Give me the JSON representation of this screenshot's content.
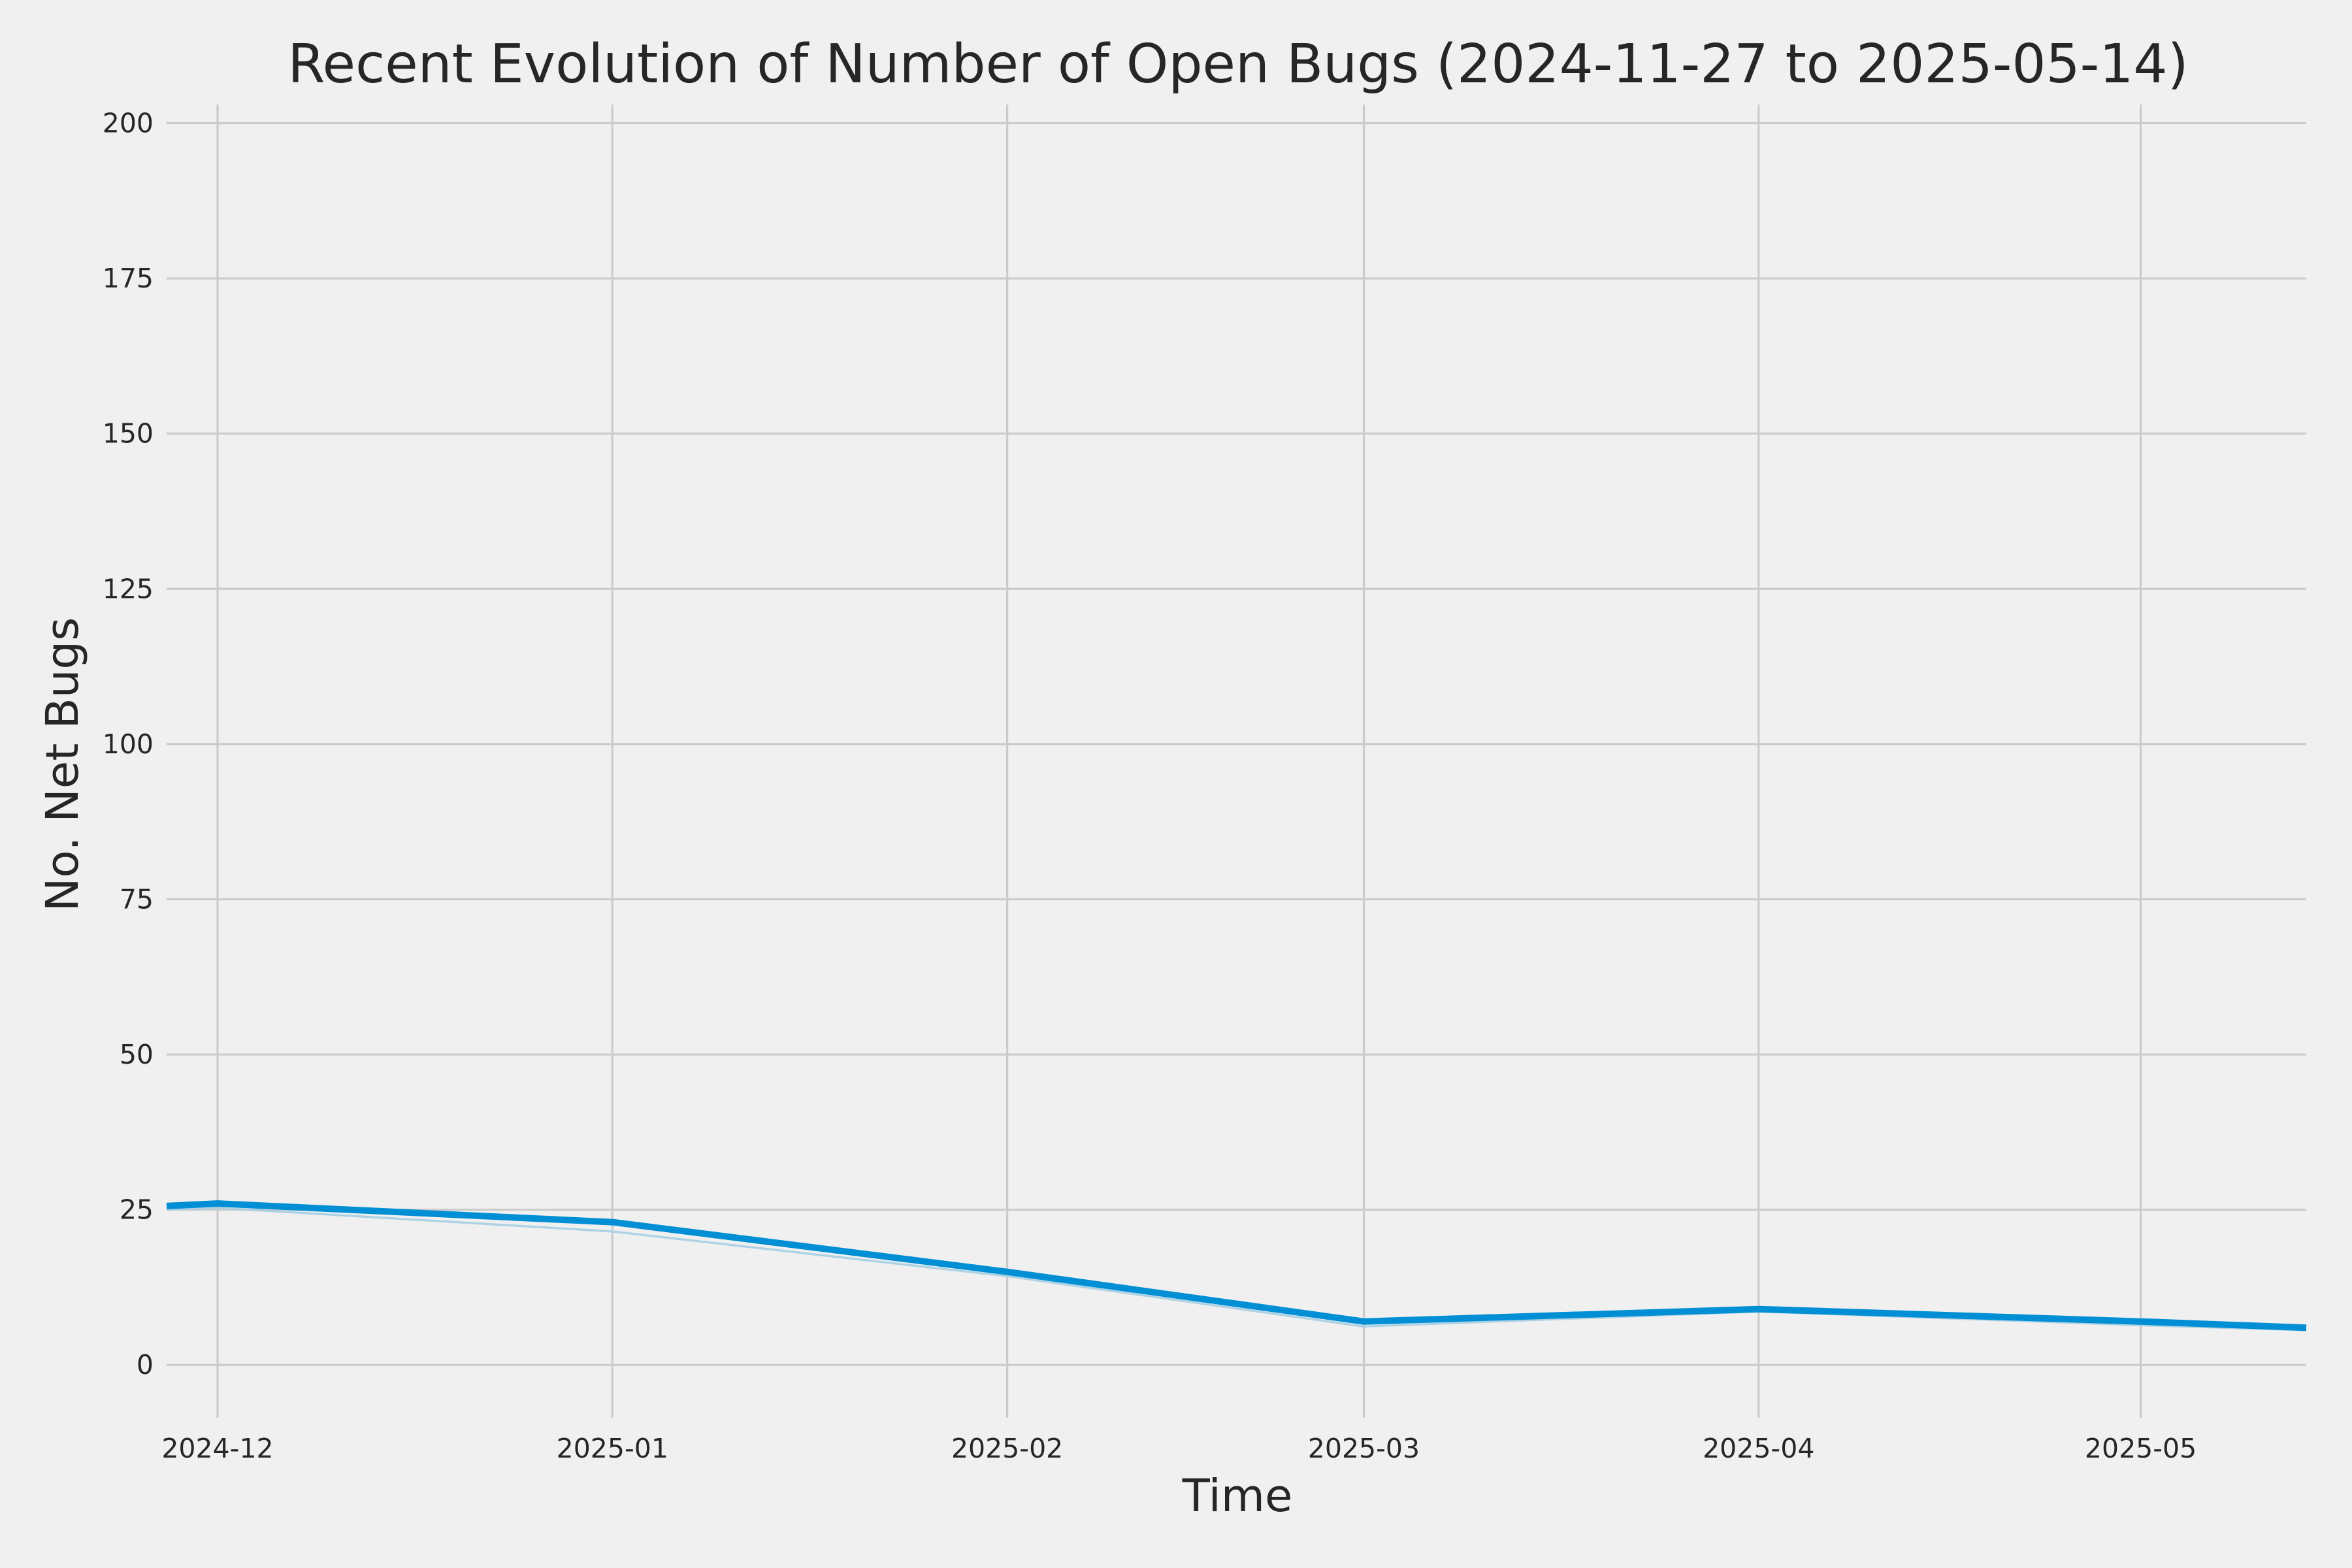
{
  "chart_data": {
    "type": "line",
    "title": "Recent Evolution of Number of Open Bugs (2024-11-27 to 2025-05-14)",
    "xlabel": "Time",
    "ylabel": "No. Net Bugs",
    "xlim": [
      "2024-11-27",
      "2025-05-14"
    ],
    "ylim": [
      -8.5,
      203
    ],
    "x_ticks": [
      "2024-12-01",
      "2025-01-01",
      "2025-02-01",
      "2025-03-01",
      "2025-04-01",
      "2025-05-01"
    ],
    "x_tick_labels": [
      "2024-12",
      "2025-01",
      "2025-02",
      "2025-03",
      "2025-04",
      "2025-05"
    ],
    "y_ticks": [
      0,
      25,
      50,
      75,
      100,
      125,
      150,
      175,
      200
    ],
    "y_tick_labels": [
      "0",
      "25",
      "50",
      "75",
      "100",
      "125",
      "150",
      "175",
      "200"
    ],
    "grid": true,
    "legend": "none",
    "series": [
      {
        "color": "#008fd5",
        "x": [
          "2024-11-27",
          "2024-12-01",
          "2025-01-01",
          "2025-02-01",
          "2025-03-01",
          "2025-04-01",
          "2025-05-01",
          "2025-05-14"
        ],
        "y": [
          25.6,
          26,
          23,
          15,
          7,
          9,
          7,
          6
        ]
      },
      {
        "color": "#a6cee3",
        "x": [
          "2024-11-27",
          "2024-12-01",
          "2025-01-01",
          "2025-02-01",
          "2025-03-01",
          "2025-04-01",
          "2025-05-01",
          "2025-05-14"
        ],
        "y": [
          25,
          25.3,
          21.5,
          14.3,
          6.2,
          8.6,
          6.4,
          5.6
        ]
      }
    ]
  }
}
